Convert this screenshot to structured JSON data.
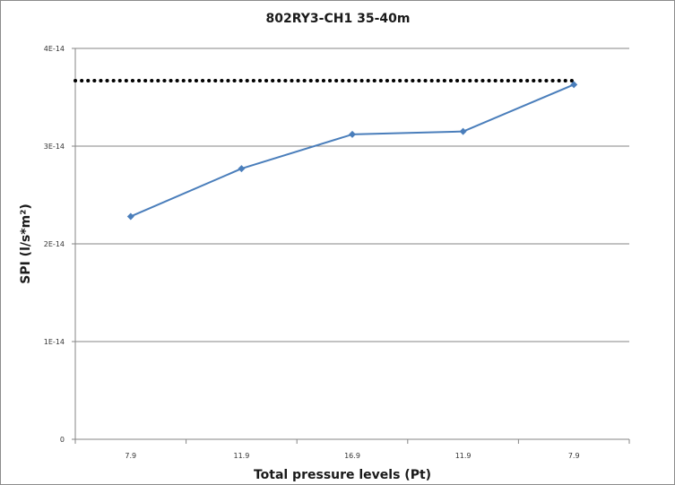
{
  "chart_data": {
    "type": "line",
    "title": "802RY3-CH1 35-40m",
    "xlabel": "Total pressure levels (Pt)",
    "ylabel": "SPI (l/s*m²)",
    "categories": [
      "7.9",
      "11.9",
      "16.9",
      "11.9",
      "7.9"
    ],
    "series": [
      {
        "values": [
          2.28e-14,
          2.77e-14,
          3.12e-14,
          3.15e-14,
          3.63e-14
        ],
        "color": "#4a7ebb"
      }
    ],
    "reference_line": {
      "value": 3.67e-14,
      "style": "dotted",
      "color": "#000000"
    },
    "ylim": [
      0,
      4e-14
    ],
    "yticks": [
      0,
      1e-14,
      2e-14,
      3e-14,
      4e-14
    ],
    "ytick_labels": [
      "0",
      "1E-14",
      "2E-14",
      "3E-14",
      "4E-14"
    ],
    "grid": true,
    "legend": "none"
  }
}
